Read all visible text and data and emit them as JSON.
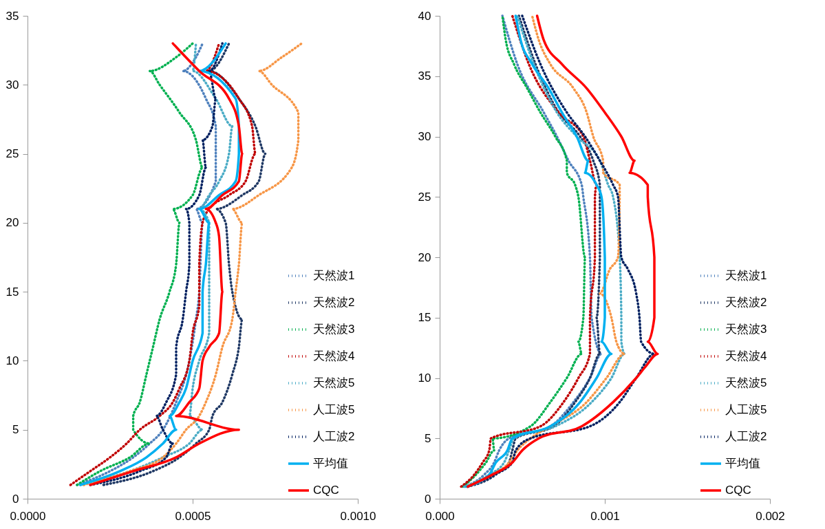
{
  "chart_data": [
    {
      "type": "line",
      "xlim": [
        0,
        0.001
      ],
      "xticks": [
        {
          "value": 0,
          "label": "0.0000"
        },
        {
          "value": 0.0005,
          "label": "0.0005"
        },
        {
          "value": 0.001,
          "label": "0.0010"
        }
      ],
      "ylim": [
        0,
        35
      ],
      "yticks": [
        0,
        5,
        10,
        15,
        20,
        25,
        30,
        35
      ],
      "grid": false,
      "legend": "bottom right",
      "series": [
        {
          "name": "天然波1",
          "color": "#4f81bd",
          "line_style": "dotted",
          "x": [
            0.00015,
            0.00025,
            0.00032,
            0.00037,
            0.00041,
            0.00045,
            0.00049,
            0.00051,
            0.00052,
            0.00053,
            0.00051,
            0.00057,
            0.00057,
            0.00057,
            0.00054,
            0.00047,
            0.00051,
            0.00053
          ],
          "values": [
            1,
            2,
            3,
            4,
            5,
            7,
            10,
            13,
            15,
            20,
            21,
            23,
            25,
            27,
            29,
            31,
            32,
            33
          ]
        },
        {
          "name": "天然波2",
          "color": "#1f3864",
          "line_style": "dotted",
          "x": [
            0.00023,
            0.00038,
            0.00046,
            0.00051,
            0.00055,
            0.00056,
            0.00059,
            0.00062,
            0.00064,
            0.00065,
            0.00062,
            0.00061,
            0.0006,
            0.00057,
            0.00065,
            0.0007,
            0.00072,
            0.00069,
            0.00064,
            0.00055,
            0.00061
          ],
          "values": [
            1,
            2,
            3,
            4,
            5,
            6,
            7,
            9,
            11,
            13,
            15,
            17,
            20,
            21,
            22,
            23,
            25,
            27,
            29,
            31,
            33
          ]
        },
        {
          "name": "天然波3",
          "color": "#00b050",
          "line_style": "dotted",
          "x": [
            0.00015,
            0.00022,
            0.00031,
            0.00037,
            0.00032,
            0.00032,
            0.00034,
            0.00036,
            0.00038,
            0.0004,
            0.00043,
            0.00045,
            0.00046,
            0.00044,
            0.0005,
            0.00053,
            0.00051,
            0.00046,
            0.0004,
            0.00037,
            0.00045,
            0.0005
          ],
          "values": [
            1,
            2,
            3,
            4,
            5,
            6,
            7,
            9,
            11,
            13,
            15,
            17,
            20,
            21,
            22,
            24,
            26,
            28,
            30,
            31,
            32,
            33
          ]
        },
        {
          "name": "天然波4",
          "color": "#c00000",
          "line_style": "dotted",
          "x": [
            0.00013,
            0.00019,
            0.00025,
            0.0003,
            0.00034,
            0.0004,
            0.00044,
            0.00046,
            0.00049,
            0.0005,
            0.00052,
            0.00052,
            0.00053,
            0.00055,
            0.00061,
            0.00066,
            0.00069,
            0.00068,
            0.00064,
            0.00054,
            0.00058
          ],
          "values": [
            1,
            2,
            3,
            4,
            5,
            6,
            7,
            8,
            10,
            12,
            14,
            17,
            20,
            21,
            22,
            23,
            25,
            27,
            29,
            31,
            33
          ]
        },
        {
          "name": "天然波5",
          "color": "#4bacc6",
          "line_style": "dotted",
          "x": [
            0.00016,
            0.00031,
            0.00041,
            0.00049,
            0.00053,
            0.00049,
            0.0005,
            0.00052,
            0.00055,
            0.00055,
            0.00055,
            0.00055,
            0.00052,
            0.00055,
            0.00058,
            0.00061,
            0.00062,
            0.00057,
            0.0005,
            0.00051
          ],
          "values": [
            1,
            2,
            3,
            4,
            5,
            6,
            8,
            10,
            12,
            15,
            17,
            20,
            21,
            22,
            23,
            25,
            27,
            29,
            31,
            33
          ]
        },
        {
          "name": "人工波5",
          "color": "#f79646",
          "line_style": "dotted",
          "x": [
            0.00017,
            0.00031,
            0.00041,
            0.00045,
            0.00048,
            0.00052,
            0.00054,
            0.00057,
            0.00059,
            0.00062,
            0.00063,
            0.00064,
            0.00065,
            0.00062,
            0.0007,
            0.0008,
            0.00082,
            0.00082,
            0.00074,
            0.0007,
            0.00077,
            0.00083
          ],
          "values": [
            1,
            2,
            3,
            4,
            5,
            6,
            7,
            9,
            11,
            13,
            15,
            17,
            20,
            21,
            22,
            24,
            26,
            28,
            30,
            31,
            32,
            33
          ]
        },
        {
          "name": "人工波2",
          "color": "#002060",
          "line_style": "dotted",
          "x": [
            0.00019,
            0.00034,
            0.00042,
            0.00044,
            0.00041,
            0.00039,
            0.00042,
            0.00045,
            0.00045,
            0.00047,
            0.00048,
            0.00049,
            0.00049,
            0.00048,
            0.00052,
            0.00054,
            0.00053,
            0.00056,
            0.00057,
            0.00055,
            0.00059
          ],
          "values": [
            1,
            2,
            3,
            4,
            5,
            6,
            7,
            9,
            11,
            13,
            15,
            17,
            20,
            21,
            22,
            24,
            26,
            27,
            29,
            31,
            33
          ]
        },
        {
          "name": "平均值",
          "color": "#00b0f0",
          "line_style": "solid",
          "x": [
            0.00016,
            0.00028,
            0.00036,
            0.00041,
            0.00045,
            0.00043,
            0.00046,
            0.00048,
            0.0005,
            0.00053,
            0.00053,
            0.00054,
            0.00055,
            0.00052,
            0.00058,
            0.00063,
            0.00064,
            0.00064,
            0.00063,
            0.00052,
            0.0006
          ],
          "values": [
            1,
            2,
            3,
            4,
            5,
            6,
            7,
            8,
            10,
            12,
            15,
            17,
            20,
            21,
            22,
            23,
            25,
            27,
            29,
            31,
            33
          ]
        },
        {
          "name": "CQC",
          "color": "#ff0000",
          "line_style": "solid",
          "x": [
            0.00019,
            0.00032,
            0.00045,
            0.00052,
            0.00064,
            0.00045,
            0.00049,
            0.00052,
            0.00053,
            0.00055,
            0.00058,
            0.00059,
            0.00058,
            0.00057,
            0.00054,
            0.00059,
            0.00064,
            0.00065,
            0.00064,
            0.00061,
            0.00052,
            0.00044
          ],
          "values": [
            1,
            2,
            3,
            4,
            5,
            6,
            7,
            8,
            10,
            11,
            12,
            15,
            19,
            20,
            21,
            22,
            23,
            25,
            27,
            29,
            31,
            33
          ]
        }
      ]
    },
    {
      "type": "line",
      "xlim": [
        0,
        0.002
      ],
      "xticks": [
        {
          "value": 0,
          "label": "0.000"
        },
        {
          "value": 0.001,
          "label": "0.001"
        },
        {
          "value": 0.002,
          "label": "0.002"
        }
      ],
      "ylim": [
        0,
        40
      ],
      "yticks": [
        0,
        5,
        10,
        15,
        20,
        25,
        30,
        35,
        40
      ],
      "grid": false,
      "legend": "bottom right",
      "series": [
        {
          "name": "天然波1",
          "color": "#4f81bd",
          "line_style": "dotted",
          "x": [
            0.00015,
            0.00027,
            0.00033,
            0.00036,
            0.00042,
            0.00067,
            0.00081,
            0.00091,
            0.00098,
            0.00092,
            0.00091,
            0.00087,
            0.00086,
            0.00078,
            0.00071,
            0.00063,
            0.00047,
            0.00038
          ],
          "values": [
            1,
            2,
            3,
            4,
            5,
            6,
            8,
            10,
            12,
            15,
            20,
            25,
            26,
            28,
            30,
            32,
            36,
            40
          ]
        },
        {
          "name": "天然波2",
          "color": "#1f3864",
          "line_style": "dotted",
          "x": [
            0.00017,
            0.00034,
            0.00042,
            0.00044,
            0.00046,
            0.00069,
            0.00082,
            0.00091,
            0.00097,
            0.00095,
            0.00097,
            0.00097,
            0.00097,
            0.00093,
            0.00085,
            0.00072,
            0.00058,
            0.00048
          ],
          "values": [
            1,
            2,
            3,
            4,
            5,
            6,
            8,
            10,
            12,
            15,
            20,
            25,
            26,
            28,
            30,
            32,
            36,
            40
          ]
        },
        {
          "name": "天然波3",
          "color": "#00b050",
          "line_style": "dotted",
          "x": [
            0.00014,
            0.00022,
            0.00028,
            0.00033,
            0.00032,
            0.00055,
            0.00067,
            0.00077,
            0.00086,
            0.00084,
            0.00087,
            0.00088,
            0.00084,
            0.00082,
            0.00077,
            0.00077,
            0.0007,
            0.00061,
            0.00053,
            0.00045,
            0.0004,
            0.00038
          ],
          "values": [
            1,
            2,
            3,
            4,
            5,
            6,
            8,
            10,
            12,
            13,
            15,
            20,
            25,
            26,
            27,
            28,
            30,
            32,
            34,
            36,
            38,
            40
          ]
        },
        {
          "name": "天然波4",
          "color": "#c00000",
          "line_style": "dotted",
          "x": [
            0.00013,
            0.00021,
            0.00026,
            0.0003,
            0.00031,
            0.00061,
            0.00075,
            0.00084,
            0.00091,
            0.00091,
            0.00094,
            0.00094,
            0.00095,
            0.00091,
            0.00087,
            0.00072,
            0.00054,
            0.00044
          ],
          "values": [
            1,
            2,
            3,
            4,
            5,
            6,
            8,
            10,
            12,
            15,
            20,
            25,
            26,
            28,
            30,
            32,
            36,
            40
          ]
        },
        {
          "name": "天然波5",
          "color": "#4bacc6",
          "line_style": "dotted",
          "x": [
            0.00015,
            0.0003,
            0.00039,
            0.00042,
            0.00045,
            0.0007,
            0.00092,
            0.00104,
            0.00112,
            0.0011,
            0.0011,
            0.00109,
            0.00105,
            0.00102,
            0.00097,
            0.00083,
            0.00071,
            0.00057,
            0.00047
          ],
          "values": [
            1,
            2,
            3,
            4,
            5,
            6,
            8,
            10,
            12,
            13,
            15,
            20,
            25,
            26,
            28,
            30,
            32,
            36,
            40
          ]
        },
        {
          "name": "人工波5",
          "color": "#f79646",
          "line_style": "dotted",
          "x": [
            0.00016,
            0.00032,
            0.00042,
            0.00047,
            0.00055,
            0.00067,
            0.00089,
            0.00101,
            0.00112,
            0.00107,
            0.00104,
            0.00097,
            0.00103,
            0.00108,
            0.00109,
            0.00109,
            0.00099,
            0.00099,
            0.00093,
            0.00089,
            0.00081,
            0.00067,
            0.0006,
            0.00056
          ],
          "values": [
            1,
            2,
            3,
            4,
            5,
            6,
            8,
            10,
            12,
            13,
            15,
            17,
            19,
            20,
            25,
            26,
            27,
            28,
            30,
            32,
            34,
            36,
            38,
            40
          ]
        },
        {
          "name": "人工波2",
          "color": "#002060",
          "line_style": "dotted",
          "x": [
            0.00017,
            0.00033,
            0.00044,
            0.00046,
            0.00055,
            0.00091,
            0.00109,
            0.00119,
            0.0013,
            0.00122,
            0.00121,
            0.00119,
            0.00114,
            0.0011,
            0.00108,
            0.00105,
            0.00097,
            0.00088,
            0.00077,
            0.00061,
            0.0005
          ],
          "values": [
            1,
            2,
            3,
            4,
            5,
            6,
            8,
            10,
            12,
            13,
            15,
            17,
            19,
            20,
            25,
            26,
            28,
            30,
            32,
            36,
            40
          ]
        },
        {
          "name": "平均值",
          "color": "#00b0f0",
          "line_style": "solid",
          "x": [
            0.00016,
            0.0003,
            0.00034,
            0.00041,
            0.00044,
            0.00067,
            0.00085,
            0.00095,
            0.00104,
            0.00098,
            0.001,
            0.001,
            0.00098,
            0.00095,
            0.00088,
            0.0009,
            0.00083,
            0.00074,
            0.00066,
            0.00056,
            0.00049,
            0.00046
          ],
          "values": [
            1,
            2,
            3,
            4,
            5,
            6,
            8,
            10,
            12,
            13,
            15,
            20,
            25,
            26,
            27,
            28,
            30,
            32,
            34,
            36,
            38,
            40
          ]
        },
        {
          "name": "CQC",
          "color": "#ff0000",
          "line_style": "solid",
          "x": [
            0.00017,
            0.00032,
            0.00044,
            0.0005,
            0.0006,
            0.00086,
            0.00105,
            0.00119,
            0.00125,
            0.00132,
            0.00126,
            0.0013,
            0.0013,
            0.00126,
            0.00126,
            0.00115,
            0.00118,
            0.0011,
            0.001,
            0.00089,
            0.00074,
            0.00063,
            0.00059
          ],
          "values": [
            1,
            2,
            3,
            4,
            5,
            6,
            8,
            10,
            11,
            12,
            13,
            15,
            20,
            25,
            26,
            27,
            28,
            30,
            32,
            34,
            36,
            38,
            40
          ]
        }
      ]
    }
  ]
}
